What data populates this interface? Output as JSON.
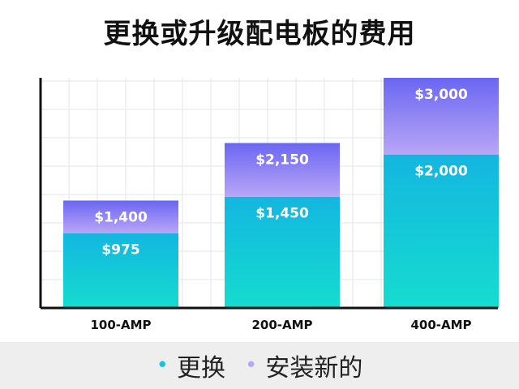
{
  "chart_data": {
    "type": "bar",
    "stacked": true,
    "title": "更换或升级配电板的费用",
    "categories": [
      "100-AMP",
      "200-AMP",
      "400-AMP"
    ],
    "series": [
      {
        "name": "更换",
        "color": "#1cc4db",
        "values": [
          975,
          1450,
          2000
        ],
        "labels": [
          "$975",
          "$1,450",
          "$2,000"
        ]
      },
      {
        "name": "安装新的",
        "color": "#8a7af0",
        "values": [
          425,
          700,
          1000
        ],
        "labels": [
          "$1,400",
          "$2,150",
          "$3,000"
        ]
      }
    ],
    "totals": [
      1400,
      2150,
      3000
    ],
    "ylim": [
      0,
      3000
    ],
    "grid": true,
    "legend": "bottom",
    "xlabel": "",
    "ylabel": ""
  },
  "colors": {
    "replace_dot": "#1cc4db",
    "install_dot": "#b7a8f5"
  }
}
